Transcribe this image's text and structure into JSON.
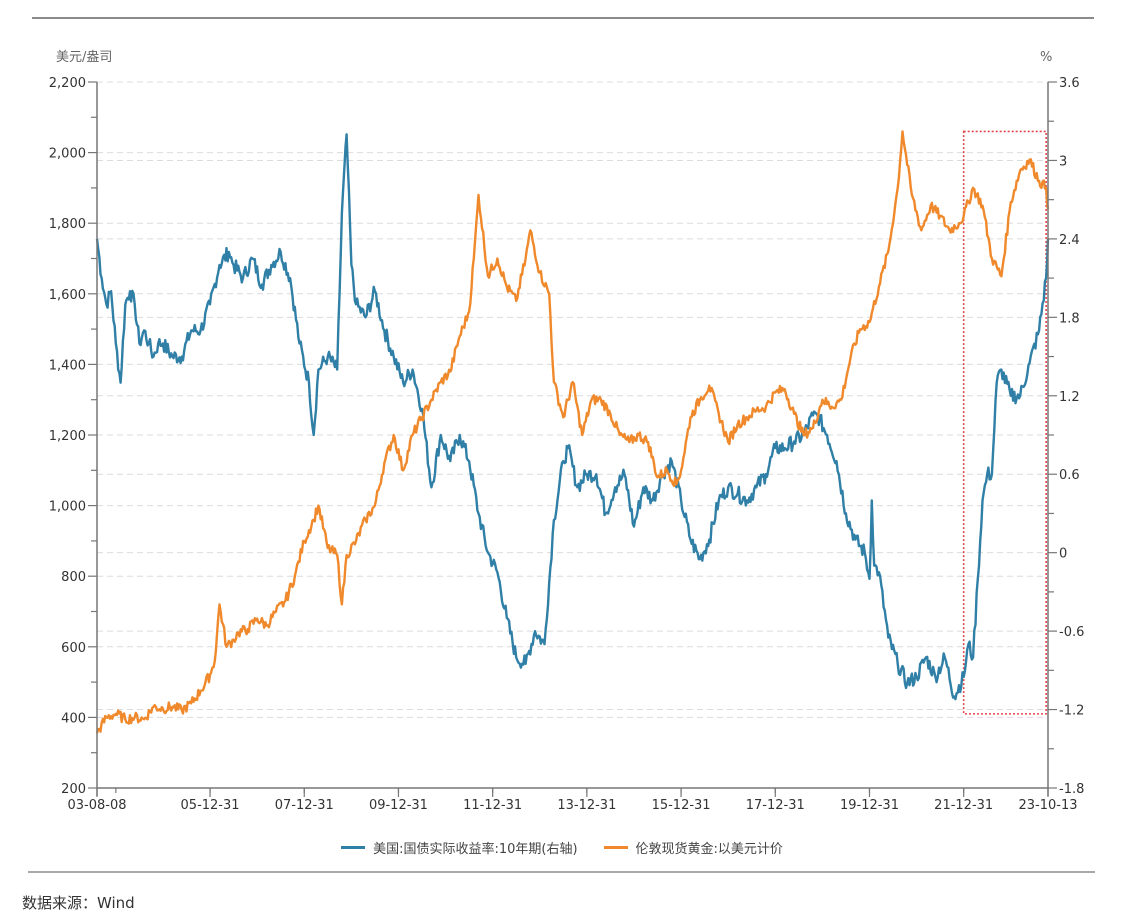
{
  "source_label": "数据来源：Wind",
  "chart_data": {
    "type": "line",
    "title": "",
    "left_axis": {
      "unit_label": "美元/盎司",
      "ylim": [
        200,
        2200
      ],
      "ticks": [
        200,
        400,
        600,
        800,
        1000,
        1200,
        1400,
        1600,
        1800,
        2000,
        2200
      ],
      "tick_labels": [
        "200",
        "400",
        "600",
        "800",
        "1,000",
        "1,200",
        "1,400",
        "1,600",
        "1,800",
        "2,000",
        "2,200"
      ]
    },
    "right_axis": {
      "unit_label": "%",
      "ylim": [
        -1.8,
        3.6
      ],
      "ticks": [
        -1.8,
        -1.2,
        -0.6,
        0,
        0.6,
        1.2,
        1.8,
        2.4,
        3,
        3.6
      ],
      "tick_labels": [
        "-1.8",
        "-1.2",
        "-0.6",
        "0",
        "0.6",
        "1.2",
        "1.8",
        "2.4",
        "3",
        "3.6"
      ]
    },
    "x_axis": {
      "range": [
        2003.6,
        2023.79
      ],
      "ticks": [
        2003.6,
        2006.0,
        2008.0,
        2010.0,
        2012.0,
        2014.0,
        2016.0,
        2018.0,
        2020.0,
        2022.0,
        2023.79
      ],
      "tick_labels": [
        "03-08-08",
        "05-12-31",
        "07-12-31",
        "09-12-31",
        "11-12-31",
        "13-12-31",
        "15-12-31",
        "17-12-31",
        "19-12-31",
        "21-12-31",
        "23-10-13"
      ]
    },
    "grid": true,
    "legend_position": "bottom-center",
    "highlight_box": {
      "x_range": [
        2022.0,
        2023.75
      ],
      "left_y_range": [
        410,
        2060
      ],
      "color": "#e0474c"
    },
    "series": [
      {
        "name": "美国:国债实际收益率:10年期(右轴)",
        "axis": "right",
        "color": "#2f7fa7",
        "x": [
          2003.6,
          2003.7,
          2003.8,
          2003.9,
          2004.0,
          2004.1,
          2004.2,
          2004.3,
          2004.4,
          2004.5,
          2004.6,
          2004.7,
          2004.8,
          2004.9,
          2005.0,
          2005.2,
          2005.4,
          2005.6,
          2005.8,
          2006.0,
          2006.2,
          2006.4,
          2006.5,
          2006.7,
          2006.9,
          2007.1,
          2007.3,
          2007.5,
          2007.7,
          2007.9,
          2008.1,
          2008.2,
          2008.3,
          2008.5,
          2008.7,
          2008.8,
          2008.9,
          2009.0,
          2009.1,
          2009.3,
          2009.5,
          2009.7,
          2009.9,
          2010.1,
          2010.3,
          2010.5,
          2010.7,
          2010.9,
          2011.1,
          2011.3,
          2011.5,
          2011.7,
          2011.9,
          2012.1,
          2012.3,
          2012.5,
          2012.7,
          2012.9,
          2013.1,
          2013.3,
          2013.5,
          2013.6,
          2013.8,
          2014.0,
          2014.2,
          2014.4,
          2014.6,
          2014.8,
          2015.0,
          2015.2,
          2015.4,
          2015.6,
          2015.8,
          2016.0,
          2016.2,
          2016.4,
          2016.6,
          2016.8,
          2017.0,
          2017.2,
          2017.4,
          2017.6,
          2017.8,
          2018.0,
          2018.2,
          2018.4,
          2018.6,
          2018.8,
          2018.9,
          2019.1,
          2019.3,
          2019.5,
          2019.7,
          2019.9,
          2020.0,
          2020.05,
          2020.1,
          2020.2,
          2020.4,
          2020.6,
          2020.8,
          2021.0,
          2021.2,
          2021.4,
          2021.6,
          2021.8,
          2022.0,
          2022.1,
          2022.2,
          2022.3,
          2022.4,
          2022.5,
          2022.6,
          2022.7,
          2022.8,
          2023.0,
          2023.2,
          2023.4,
          2023.6,
          2023.75,
          2023.79
        ],
        "values": [
          2.4,
          2.1,
          1.9,
          2.0,
          1.6,
          1.3,
          1.9,
          2.0,
          1.9,
          1.6,
          1.7,
          1.6,
          1.5,
          1.6,
          1.6,
          1.5,
          1.5,
          1.7,
          1.7,
          1.9,
          2.2,
          2.3,
          2.2,
          2.1,
          2.25,
          2.05,
          2.2,
          2.3,
          2.1,
          1.6,
          1.3,
          0.9,
          1.4,
          1.5,
          1.4,
          2.6,
          3.2,
          2.2,
          1.9,
          1.8,
          2.0,
          1.7,
          1.5,
          1.3,
          1.4,
          1.1,
          0.5,
          0.9,
          0.7,
          0.9,
          0.7,
          0.3,
          0.0,
          -0.15,
          -0.5,
          -0.8,
          -0.85,
          -0.6,
          -0.7,
          0.25,
          0.7,
          0.8,
          0.5,
          0.6,
          0.6,
          0.3,
          0.5,
          0.6,
          0.2,
          0.5,
          0.4,
          0.6,
          0.7,
          0.4,
          0.1,
          -0.05,
          0.1,
          0.4,
          0.5,
          0.45,
          0.4,
          0.5,
          0.6,
          0.8,
          0.8,
          0.85,
          0.9,
          1.05,
          1.05,
          0.9,
          0.7,
          0.3,
          0.1,
          0.0,
          -0.2,
          0.4,
          -0.1,
          -0.15,
          -0.65,
          -0.85,
          -1.0,
          -0.95,
          -0.8,
          -0.95,
          -0.8,
          -1.1,
          -0.95,
          -0.7,
          -0.8,
          -0.2,
          0.4,
          0.6,
          0.6,
          1.3,
          1.4,
          1.2,
          1.2,
          1.45,
          1.7,
          2.1,
          2.4
        ]
      },
      {
        "name": "伦敦现货黄金:以美元计价",
        "axis": "left",
        "color": "#f0892c",
        "x": [
          2003.6,
          2003.8,
          2004.0,
          2004.2,
          2004.4,
          2004.6,
          2004.8,
          2005.0,
          2005.2,
          2005.4,
          2005.6,
          2005.8,
          2006.0,
          2006.1,
          2006.2,
          2006.35,
          2006.5,
          2006.6,
          2006.8,
          2007.0,
          2007.2,
          2007.4,
          2007.6,
          2007.8,
          2008.0,
          2008.2,
          2008.3,
          2008.5,
          2008.7,
          2008.8,
          2008.9,
          2009.1,
          2009.3,
          2009.5,
          2009.7,
          2009.9,
          2010.1,
          2010.3,
          2010.5,
          2010.7,
          2010.9,
          2011.1,
          2011.3,
          2011.5,
          2011.6,
          2011.7,
          2011.9,
          2012.1,
          2012.3,
          2012.5,
          2012.7,
          2012.8,
          2013.0,
          2013.2,
          2013.3,
          2013.5,
          2013.7,
          2013.9,
          2014.1,
          2014.3,
          2014.5,
          2014.7,
          2014.9,
          2015.1,
          2015.3,
          2015.5,
          2015.7,
          2015.9,
          2016.0,
          2016.2,
          2016.4,
          2016.6,
          2016.8,
          2017.0,
          2017.2,
          2017.4,
          2017.6,
          2017.8,
          2018.0,
          2018.2,
          2018.4,
          2018.6,
          2018.8,
          2019.0,
          2019.2,
          2019.4,
          2019.6,
          2019.8,
          2020.0,
          2020.2,
          2020.4,
          2020.6,
          2020.7,
          2020.9,
          2021.1,
          2021.3,
          2021.5,
          2021.7,
          2021.9,
          2022.0,
          2022.2,
          2022.4,
          2022.6,
          2022.8,
          2023.0,
          2023.2,
          2023.4,
          2023.6,
          2023.75,
          2023.79
        ],
        "values": [
          355,
          400,
          410,
          395,
          400,
          395,
          430,
          425,
          430,
          420,
          440,
          475,
          520,
          560,
          720,
          600,
          620,
          640,
          650,
          680,
          660,
          700,
          730,
          800,
          900,
          960,
          1000,
          880,
          860,
          720,
          860,
          900,
          960,
          1000,
          1120,
          1200,
          1100,
          1200,
          1250,
          1300,
          1350,
          1380,
          1480,
          1550,
          1700,
          1880,
          1650,
          1700,
          1620,
          1580,
          1700,
          1780,
          1660,
          1600,
          1350,
          1250,
          1350,
          1200,
          1300,
          1300,
          1260,
          1200,
          1180,
          1200,
          1180,
          1080,
          1100,
          1060,
          1100,
          1250,
          1300,
          1340,
          1260,
          1180,
          1230,
          1250,
          1270,
          1280,
          1320,
          1330,
          1260,
          1200,
          1220,
          1300,
          1280,
          1300,
          1420,
          1500,
          1520,
          1620,
          1720,
          1900,
          2060,
          1880,
          1780,
          1850,
          1820,
          1780,
          1800,
          1820,
          1900,
          1850,
          1700,
          1650,
          1860,
          1950,
          1980,
          1920,
          1900,
          1840
        ]
      }
    ]
  }
}
